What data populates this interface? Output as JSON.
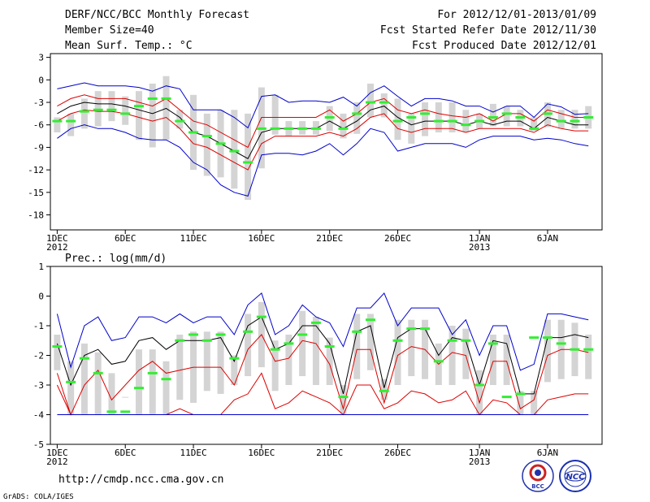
{
  "header": {
    "title": "DERF/NCC/BCC Monthly Forecast",
    "member_size": "Member Size=40",
    "variable_top": "Mean Surf. Temp.: °C",
    "period": "For 2012/12/01-2013/01/09",
    "refer_date": "Fcst Started Refer Date 2012/11/30",
    "produced_date": "Fcst Produced Date 2012/12/01"
  },
  "footer": {
    "url": "http://cmdp.ncc.cma.gov.cn",
    "grads": "GrADS: COLA/IGES",
    "logo_bcc": "BCC",
    "logo_ncc": "NCC"
  },
  "colors": {
    "envelope": "#0000cc",
    "spread": "#dd0000",
    "mean": "#000000",
    "median": "#33ee33",
    "box": "#d4d4d4"
  },
  "chart_data": [
    {
      "type": "box-and-line",
      "title": "Mean Surf. Temp.: °C",
      "ylim": [
        -20,
        3.5
      ],
      "yticks": [
        3,
        0,
        -3,
        -6,
        -9,
        -12,
        -15,
        -18
      ],
      "xlim": [
        0.5,
        41
      ],
      "xticks": [
        {
          "day": 1,
          "label": "1DEC",
          "sub": "2012"
        },
        {
          "day": 6,
          "label": "6DEC",
          "sub": ""
        },
        {
          "day": 11,
          "label": "11DEC",
          "sub": ""
        },
        {
          "day": 16,
          "label": "16DEC",
          "sub": ""
        },
        {
          "day": 21,
          "label": "21DEC",
          "sub": ""
        },
        {
          "day": 26,
          "label": "26DEC",
          "sub": ""
        },
        {
          "day": 32,
          "label": "1JAN",
          "sub": "2013"
        },
        {
          "day": 37,
          "label": "6JAN",
          "sub": ""
        }
      ],
      "days": [
        1,
        2,
        3,
        4,
        5,
        6,
        7,
        8,
        9,
        10,
        11,
        12,
        13,
        14,
        15,
        16,
        17,
        18,
        19,
        20,
        21,
        22,
        23,
        24,
        25,
        26,
        27,
        28,
        29,
        30,
        31,
        32,
        33,
        34,
        35,
        36,
        37,
        38,
        39,
        40
      ],
      "series": [
        {
          "name": "max",
          "color": "#0000cc",
          "values": [
            -1.2,
            -0.8,
            -0.4,
            -0.8,
            -0.8,
            -0.8,
            -1.0,
            -1.5,
            -0.8,
            -1.2,
            -4.0,
            -4.0,
            -4.0,
            -5.0,
            -6.4,
            -2.2,
            -2.0,
            -3.0,
            -2.8,
            -2.8,
            -3.0,
            -2.3,
            -3.5,
            -1.7,
            -0.8,
            -2.2,
            -3.5,
            -2.5,
            -2.5,
            -2.8,
            -3.5,
            -3.5,
            -4.3,
            -3.5,
            -3.5,
            -5.0,
            -3.2,
            -3.6,
            -4.6,
            -4.5
          ]
        },
        {
          "name": "upper",
          "color": "#dd0000",
          "values": [
            -3.5,
            -2.5,
            -2.0,
            -2.5,
            -2.5,
            -2.5,
            -3.0,
            -3.5,
            -2.5,
            -4.0,
            -5.5,
            -6.0,
            -7.0,
            -8.0,
            -9.0,
            -5.0,
            -5.0,
            -5.0,
            -5.0,
            -5.0,
            -4.0,
            -5.5,
            -4.5,
            -3.0,
            -2.5,
            -4.0,
            -4.5,
            -4.0,
            -4.5,
            -4.8,
            -5.0,
            -4.5,
            -5.5,
            -4.5,
            -4.5,
            -5.5,
            -4.0,
            -4.5,
            -5.0,
            -5.0
          ]
        },
        {
          "name": "mean",
          "color": "#000000",
          "values": [
            -4.5,
            -3.5,
            -3.0,
            -3.2,
            -3.2,
            -3.5,
            -4.0,
            -4.5,
            -3.8,
            -5.0,
            -7.0,
            -7.5,
            -8.5,
            -9.5,
            -10.5,
            -7.0,
            -6.5,
            -6.5,
            -6.5,
            -6.5,
            -5.5,
            -6.5,
            -5.5,
            -4.0,
            -3.5,
            -5.0,
            -6.0,
            -5.5,
            -5.5,
            -5.5,
            -6.0,
            -5.5,
            -6.0,
            -5.5,
            -5.5,
            -6.5,
            -5.0,
            -5.5,
            -6.0,
            -6.0
          ]
        },
        {
          "name": "lower",
          "color": "#dd0000",
          "values": [
            -5.5,
            -4.5,
            -4.0,
            -4.2,
            -4.2,
            -4.5,
            -5.0,
            -5.5,
            -5.0,
            -6.5,
            -8.5,
            -9.0,
            -10.0,
            -11.0,
            -12.0,
            -8.5,
            -7.5,
            -7.5,
            -7.5,
            -7.5,
            -7.0,
            -7.5,
            -6.5,
            -5.0,
            -4.5,
            -6.5,
            -7.0,
            -6.5,
            -6.5,
            -6.5,
            -7.0,
            -6.5,
            -6.5,
            -6.5,
            -6.5,
            -7.0,
            -6.0,
            -6.5,
            -6.8,
            -6.8
          ]
        },
        {
          "name": "min",
          "color": "#0000cc",
          "values": [
            -7.8,
            -6.5,
            -6.0,
            -6.5,
            -6.5,
            -7.0,
            -7.8,
            -8.0,
            -8.0,
            -9.0,
            -11.0,
            -12.0,
            -14.0,
            -15.0,
            -15.5,
            -10.0,
            -9.8,
            -9.8,
            -10.0,
            -9.5,
            -8.5,
            -10.0,
            -8.5,
            -6.5,
            -7.0,
            -9.5,
            -9.0,
            -8.5,
            -8.5,
            -8.5,
            -9.0,
            -8.0,
            -7.5,
            -7.5,
            -7.5,
            -8.0,
            -7.8,
            -8.0,
            -8.5,
            -8.8
          ]
        }
      ],
      "box_low": [
        -7.0,
        -7.5,
        -6.5,
        -6.2,
        -5.5,
        -6.0,
        -8.0,
        -9.0,
        -8.0,
        -6.5,
        -12.0,
        -12.8,
        -13.0,
        -14.5,
        -16.0,
        -11.8,
        -7.3,
        -7.5,
        -7.3,
        -7.3,
        -6.8,
        -7.8,
        -7.2,
        -5.0,
        -5.0,
        -8.0,
        -8.5,
        -7.5,
        -7.0,
        -7.0,
        -7.0,
        -6.5,
        -6.2,
        -6.2,
        -6.2,
        -6.8,
        -6.3,
        -6.5,
        -6.5,
        -6.5
      ],
      "box_high": [
        -5.0,
        -4.5,
        -2.5,
        -1.5,
        -1.5,
        -2.2,
        -1.5,
        -0.5,
        0.5,
        -4.0,
        -2.0,
        -4.5,
        -4.0,
        -4.0,
        -4.5,
        -1.0,
        -2.0,
        -5.5,
        -5.5,
        -5.5,
        -3.5,
        -4.5,
        -3.0,
        -0.5,
        -1.8,
        -2.5,
        -4.5,
        -3.0,
        -3.0,
        -3.0,
        -4.0,
        -4.5,
        -3.2,
        -3.5,
        -4.0,
        -5.0,
        -3.0,
        -4.0,
        -4.0,
        -3.5
      ],
      "median": [
        -5.5,
        -5.5,
        -4.2,
        -4.0,
        -4.0,
        -4.5,
        -3.5,
        -2.5,
        -2.5,
        -5.5,
        -7.0,
        -7.5,
        -8.5,
        -9.5,
        -11.0,
        -6.5,
        -6.5,
        -6.5,
        -6.5,
        -6.5,
        -5.0,
        -6.5,
        -4.5,
        -3.0,
        -3.0,
        -5.5,
        -5.0,
        -4.5,
        -5.5,
        -5.5,
        -6.0,
        -5.5,
        -5.0,
        -4.5,
        -5.0,
        -6.5,
        -4.5,
        -5.5,
        -5.5,
        -5.0
      ]
    },
    {
      "type": "box-and-line",
      "title": "Prec.: log(mm/d)",
      "ylim": [
        -5,
        1
      ],
      "yticks": [
        1,
        0,
        -1,
        -2,
        -3,
        -4,
        -5
      ],
      "xlim": [
        0.5,
        41
      ],
      "xticks": [
        {
          "day": 1,
          "label": "1DEC",
          "sub": "2012"
        },
        {
          "day": 6,
          "label": "6DEC",
          "sub": ""
        },
        {
          "day": 11,
          "label": "11DEC",
          "sub": ""
        },
        {
          "day": 16,
          "label": "16DEC",
          "sub": ""
        },
        {
          "day": 21,
          "label": "21DEC",
          "sub": ""
        },
        {
          "day": 26,
          "label": "26DEC",
          "sub": ""
        },
        {
          "day": 32,
          "label": "1JAN",
          "sub": "2013"
        },
        {
          "day": 37,
          "label": "6JAN",
          "sub": ""
        }
      ],
      "days": [
        1,
        2,
        3,
        4,
        5,
        6,
        7,
        8,
        9,
        10,
        11,
        12,
        13,
        14,
        15,
        16,
        17,
        18,
        19,
        20,
        21,
        22,
        23,
        24,
        25,
        26,
        27,
        28,
        29,
        30,
        31,
        32,
        33,
        34,
        35,
        36,
        37,
        38,
        39,
        40
      ],
      "series": [
        {
          "name": "max",
          "color": "#0000cc",
          "values": [
            -0.6,
            -2.4,
            -1.0,
            -0.7,
            -1.5,
            -1.4,
            -0.7,
            -0.7,
            -0.9,
            -0.6,
            -0.9,
            -0.7,
            -0.7,
            -1.3,
            -0.3,
            0.1,
            -1.3,
            -1.0,
            -0.3,
            -0.7,
            -0.9,
            -1.7,
            -0.4,
            -0.4,
            0.1,
            -1.0,
            -0.4,
            -0.4,
            -0.4,
            -1.3,
            -0.8,
            -2.0,
            -1.0,
            -1.0,
            -2.5,
            -2.3,
            -0.6,
            -0.6,
            -0.7,
            -0.8
          ]
        },
        {
          "name": "mean",
          "color": "#000000",
          "values": [
            -1.6,
            -3.0,
            -2.0,
            -1.8,
            -2.3,
            -2.2,
            -1.5,
            -1.4,
            -1.8,
            -1.5,
            -1.5,
            -1.5,
            -1.4,
            -2.2,
            -1.0,
            -0.7,
            -1.8,
            -1.6,
            -1.0,
            -1.0,
            -1.6,
            -3.3,
            -1.2,
            -1.0,
            -3.1,
            -1.4,
            -1.1,
            -1.1,
            -2.0,
            -1.4,
            -1.5,
            -3.0,
            -1.5,
            -1.6,
            -3.3,
            -3.3,
            -1.4,
            -1.4,
            -1.3,
            -1.4
          ]
        },
        {
          "name": "upper",
          "color": "#dd0000",
          "values": [
            -2.6,
            -4.0,
            -3.0,
            -2.5,
            -3.5,
            -3.0,
            -2.5,
            -2.2,
            -2.6,
            -2.5,
            -2.4,
            -2.4,
            -2.4,
            -3.0,
            -1.8,
            -1.3,
            -2.2,
            -2.1,
            -1.5,
            -1.6,
            -2.3,
            -3.8,
            -1.8,
            -1.8,
            -3.6,
            -2.0,
            -1.7,
            -1.8,
            -2.3,
            -1.9,
            -2.0,
            -3.6,
            -2.2,
            -2.2,
            -3.8,
            -3.5,
            -2.0,
            -1.8,
            -1.8,
            -1.9
          ]
        },
        {
          "name": "lower",
          "color": "#dd0000",
          "values": [
            -3.0,
            -4.0,
            -4.0,
            -4.0,
            -4.0,
            -4.0,
            -4.0,
            -4.0,
            -4.0,
            -3.8,
            -4.0,
            -4.0,
            -4.0,
            -3.5,
            -3.3,
            -2.6,
            -3.8,
            -3.6,
            -3.2,
            -3.4,
            -3.6,
            -4.0,
            -3.0,
            -3.0,
            -3.8,
            -3.6,
            -3.2,
            -3.3,
            -3.6,
            -3.5,
            -3.2,
            -4.0,
            -3.5,
            -3.6,
            -4.0,
            -4.0,
            -3.5,
            -3.4,
            -3.3,
            -3.3
          ]
        },
        {
          "name": "min",
          "color": "#0000cc",
          "values": [
            -4.0,
            -4.0,
            -4.0,
            -4.0,
            -4.0,
            -4.0,
            -4.0,
            -4.0,
            -4.0,
            -4.0,
            -4.0,
            -4.0,
            -4.0,
            -4.0,
            -4.0,
            -4.0,
            -4.0,
            -4.0,
            -4.0,
            -4.0,
            -4.0,
            -4.0,
            -4.0,
            -4.0,
            -4.0,
            -4.0,
            -4.0,
            -4.0,
            -4.0,
            -4.0,
            -4.0,
            -4.0,
            -4.0,
            -4.0,
            -4.0,
            -4.0,
            -4.0,
            -4.0,
            -4.0,
            -4.0
          ]
        }
      ],
      "box_low": [
        -2.5,
        -4.0,
        -4.0,
        -4.0,
        -4.0,
        -3.4,
        -4.0,
        -4.0,
        -4.0,
        -3.5,
        -3.6,
        -3.2,
        -3.3,
        -3.0,
        -2.7,
        -2.4,
        -3.2,
        -3.0,
        -2.7,
        -3.0,
        -3.0,
        -4.0,
        -2.8,
        -2.5,
        -3.5,
        -3.0,
        -2.7,
        -2.8,
        -3.0,
        -3.0,
        -2.8,
        -4.0,
        -3.0,
        -3.0,
        -4.0,
        -4.0,
        -2.9,
        -2.8,
        -2.7,
        -2.8
      ],
      "box_high": [
        -1.3,
        -2.2,
        -1.6,
        -1.9,
        -2.6,
        -3.4,
        -1.8,
        -1.8,
        -2.2,
        -1.3,
        -1.2,
        -1.2,
        -1.2,
        -2.0,
        -0.6,
        -0.2,
        -1.5,
        -1.3,
        -0.5,
        -0.7,
        -1.4,
        -3.0,
        -0.6,
        -0.6,
        -2.8,
        -0.8,
        -0.8,
        -0.8,
        -1.6,
        -1.0,
        -1.1,
        -2.5,
        -1.3,
        -1.3,
        -3.2,
        -3.2,
        -0.8,
        -0.8,
        -0.9,
        -1.3
      ],
      "median": [
        -1.7,
        -2.9,
        -2.1,
        -2.6,
        -3.9,
        -3.9,
        -3.1,
        -2.6,
        -2.8,
        -1.5,
        -1.3,
        -1.5,
        -1.3,
        -2.1,
        -1.2,
        -0.7,
        -1.8,
        -1.6,
        -1.3,
        -0.9,
        -1.7,
        -3.4,
        -1.2,
        -0.8,
        -3.2,
        -1.5,
        -1.1,
        -1.1,
        -2.2,
        -1.5,
        -1.5,
        -3.0,
        -1.6,
        -3.4,
        -3.3,
        -1.4,
        -1.4,
        -1.6,
        -1.8,
        -1.8
      ]
    }
  ]
}
